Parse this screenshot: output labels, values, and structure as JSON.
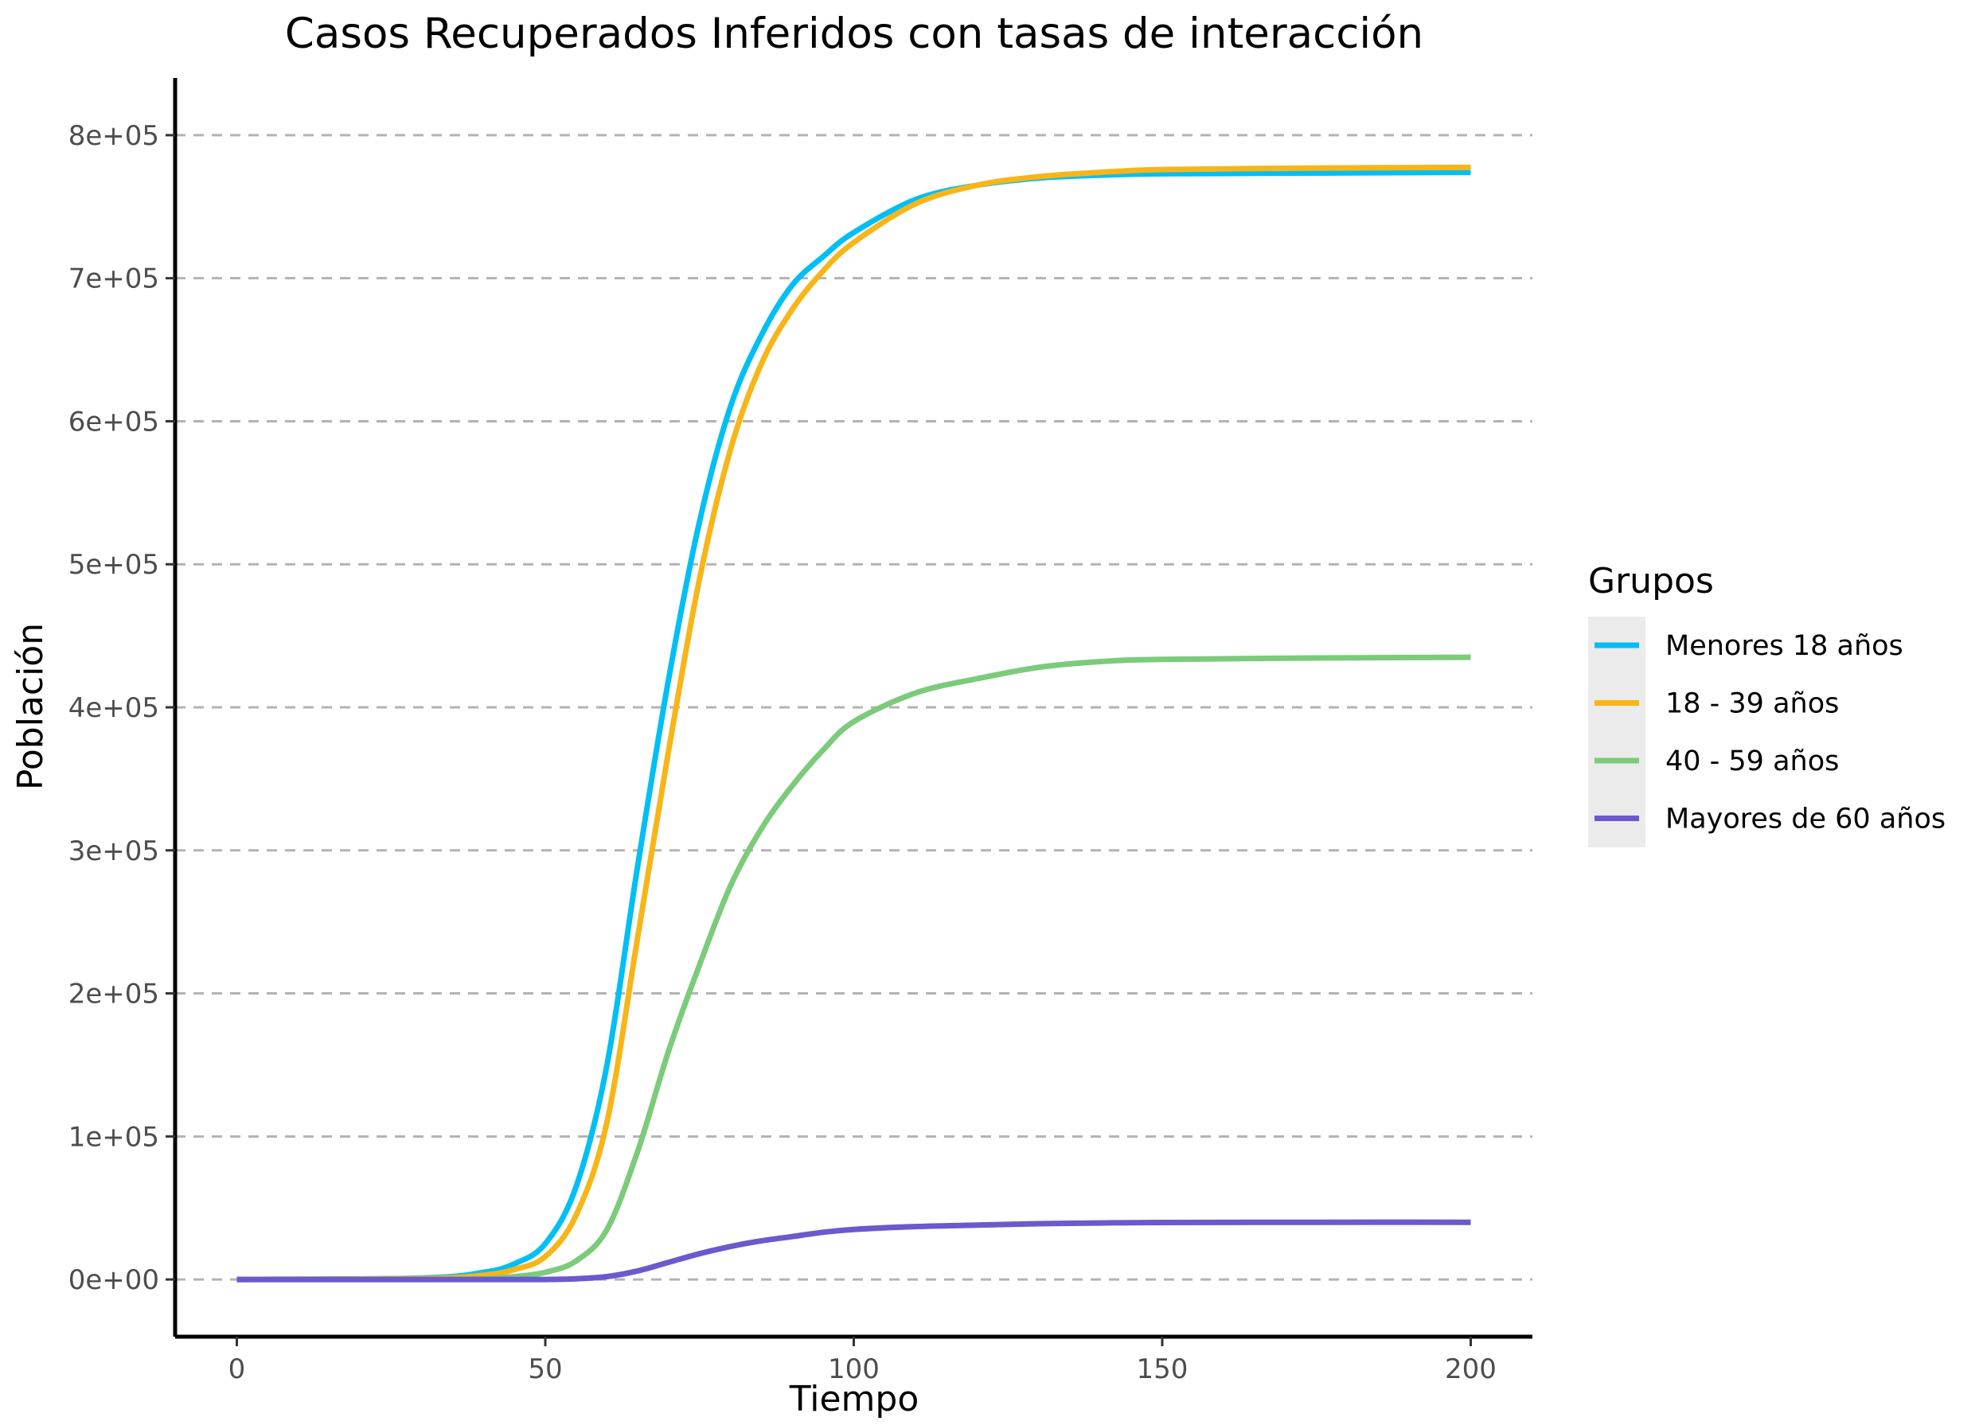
{
  "chart_data": {
    "type": "line",
    "title": "Casos Recuperados Inferidos con tasas de interacción",
    "xlabel": "Tiempo",
    "ylabel": "Población",
    "xlim": [
      -10,
      210
    ],
    "ylim": [
      -40000,
      840000
    ],
    "x_ticks": [
      0,
      50,
      100,
      150,
      200
    ],
    "x_tick_labels": [
      "0",
      "50",
      "100",
      "150",
      "200"
    ],
    "y_ticks": [
      0,
      100000,
      200000,
      300000,
      400000,
      500000,
      600000,
      700000,
      800000
    ],
    "y_tick_labels": [
      "0e+00",
      "1e+05",
      "2e+05",
      "3e+05",
      "4e+05",
      "5e+05",
      "6e+05",
      "7e+05",
      "8e+05"
    ],
    "grid": "horizontal dashed",
    "legend": {
      "title": "Grupos",
      "position": "right"
    },
    "x": [
      0,
      30,
      40,
      45,
      50,
      55,
      60,
      65,
      70,
      75,
      80,
      85,
      90,
      95,
      100,
      110,
      120,
      130,
      140,
      150,
      175,
      200
    ],
    "series": [
      {
        "name": "Menores 18 años",
        "color": "#00BFF5",
        "values": [
          0,
          1000,
          5000,
          11000,
          25000,
          65000,
          150000,
          290000,
          420000,
          530000,
          610000,
          660000,
          695000,
          715000,
          732000,
          755000,
          765000,
          770000,
          772000,
          773000,
          773500,
          774000
        ]
      },
      {
        "name": "18 - 39 años",
        "color": "#F7B518",
        "values": [
          0,
          600,
          3000,
          7000,
          16000,
          45000,
          110000,
          240000,
          370000,
          490000,
          580000,
          640000,
          678000,
          705000,
          725000,
          752000,
          765000,
          771000,
          774000,
          776000,
          777000,
          777500
        ]
      },
      {
        "name": "40 - 59 años",
        "color": "#7BCB7B",
        "values": [
          0,
          0,
          500,
          2000,
          5000,
          13000,
          35000,
          90000,
          160000,
          220000,
          275000,
          315000,
          345000,
          370000,
          390000,
          410000,
          420000,
          428000,
          432000,
          433500,
          434500,
          435000
        ]
      },
      {
        "name": "Mayores de 60 años",
        "color": "#6A5ACD",
        "values": [
          0,
          0,
          0,
          0,
          0,
          500,
          2000,
          6000,
          12000,
          18000,
          23000,
          27000,
          30000,
          33000,
          35000,
          37000,
          38000,
          39000,
          39500,
          39800,
          40000,
          40000
        ]
      }
    ]
  }
}
